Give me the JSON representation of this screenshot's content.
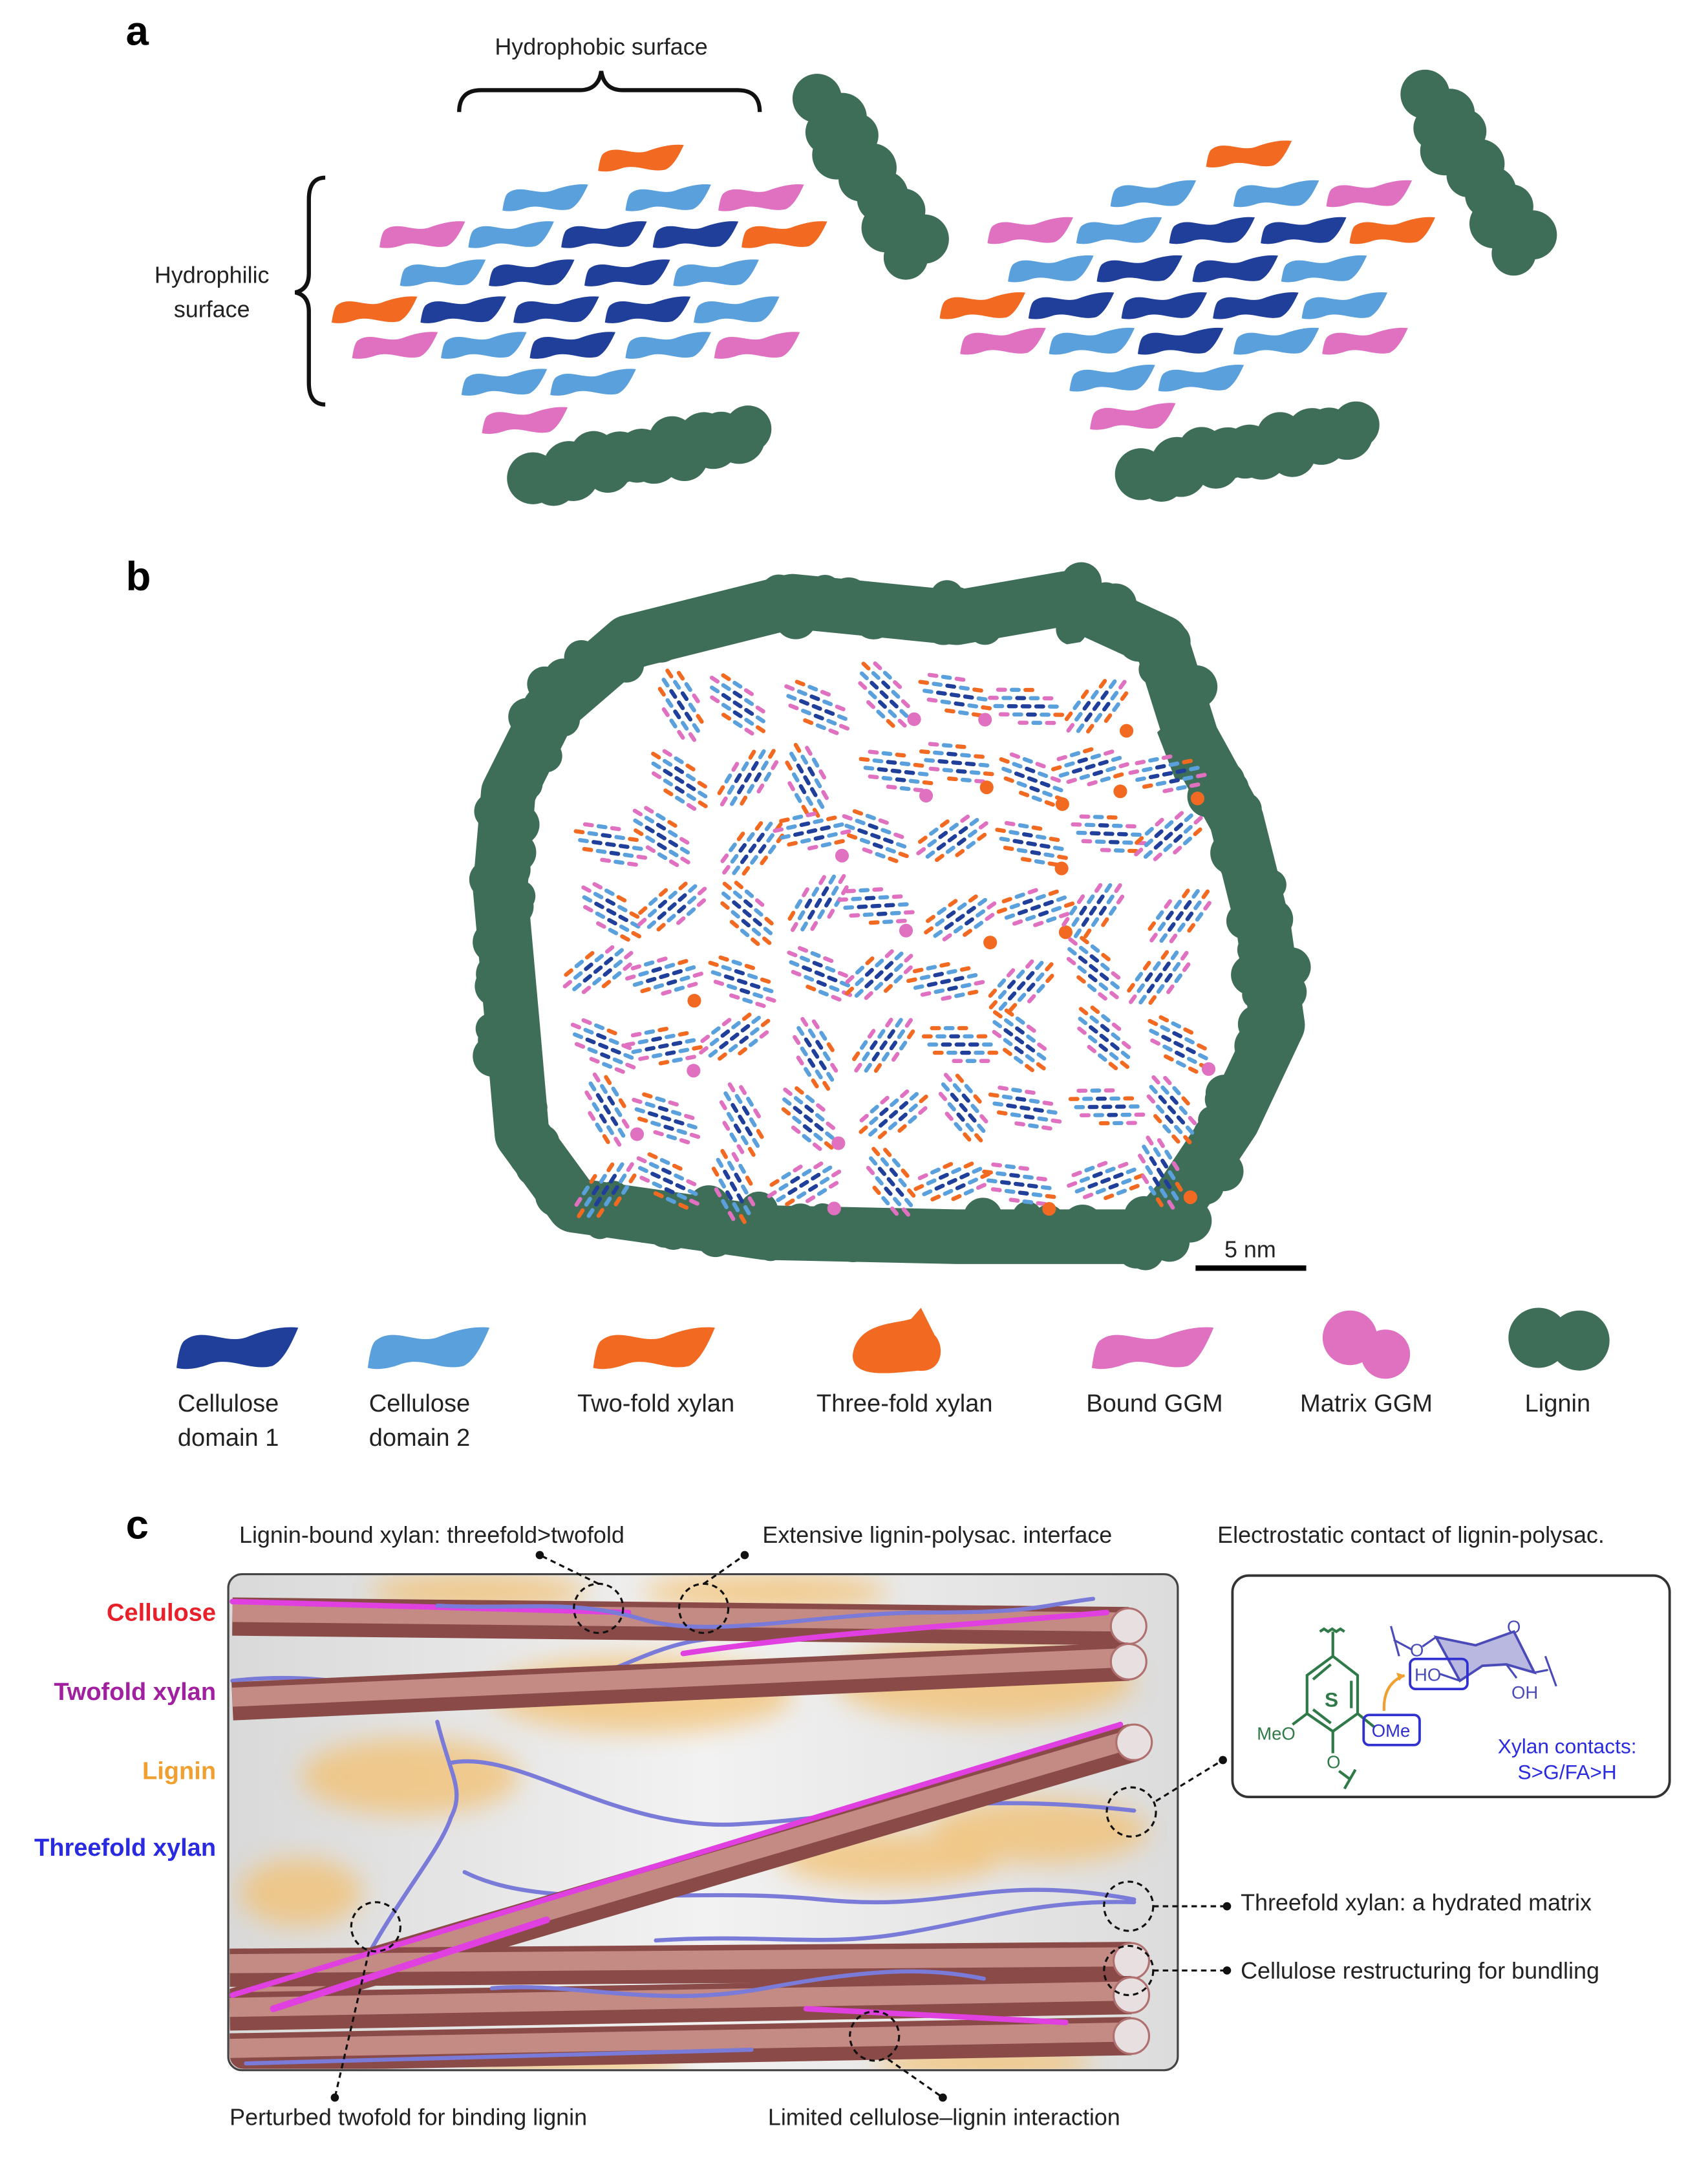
{
  "panel_a": {
    "letter": "a",
    "hydrophobic_label": "Hydrophobic surface",
    "hydrophilic_label": [
      "Hydrophilic",
      "surface"
    ]
  },
  "panel_b": {
    "letter": "b",
    "scale_bar": "5 nm"
  },
  "legend": [
    {
      "key": "cellulose1",
      "label": [
        "Cellulose",
        "domain 1"
      ],
      "color": "#1f3f9a"
    },
    {
      "key": "cellulose2",
      "label": [
        "Cellulose",
        "domain 2"
      ],
      "color": "#5aa0dc"
    },
    {
      "key": "twofold",
      "label": [
        "Two-fold xylan"
      ],
      "color": "#f26a21"
    },
    {
      "key": "threefold",
      "label": [
        "Three-fold xylan"
      ],
      "color": "#f26a21"
    },
    {
      "key": "bound_ggm",
      "label": [
        "Bound GGM"
      ],
      "color": "#e070c0"
    },
    {
      "key": "matrix_ggm",
      "label": [
        "Matrix GGM"
      ],
      "color": "#e070c0"
    },
    {
      "key": "lignin",
      "label": [
        "Lignin"
      ],
      "color": "#3f6e58"
    }
  ],
  "panel_c": {
    "letter": "c",
    "side_labels": [
      {
        "text": "Cellulose",
        "color": "#e8202a"
      },
      {
        "text": "Twofold xylan",
        "color": "#a020a0"
      },
      {
        "text": "Lignin",
        "color": "#f0a030"
      },
      {
        "text": "Threefold xylan",
        "color": "#2a2ae0"
      }
    ],
    "annotations": {
      "lignin_bound": "Lignin-bound xylan: threefold>twofold",
      "interface": "Extensive lignin-polysac. interface",
      "electrostatic": "Electrostatic contact of lignin-polysac.",
      "hydrated": "Threefold xylan: a hydrated matrix",
      "restructuring": "Cellulose restructuring for bundling",
      "perturbed": "Perturbed twofold for binding lignin",
      "limited": "Limited cellulose–lignin interaction"
    },
    "inset": {
      "ring_label": "S",
      "meo": "MeO",
      "ome": "OMe",
      "o_bottom": "O",
      "ho": "HO",
      "oh": "OH",
      "o_left": "O",
      "o_ring": "O",
      "contacts": [
        "Xylan contacts:",
        "S>G/FA>H"
      ]
    }
  }
}
